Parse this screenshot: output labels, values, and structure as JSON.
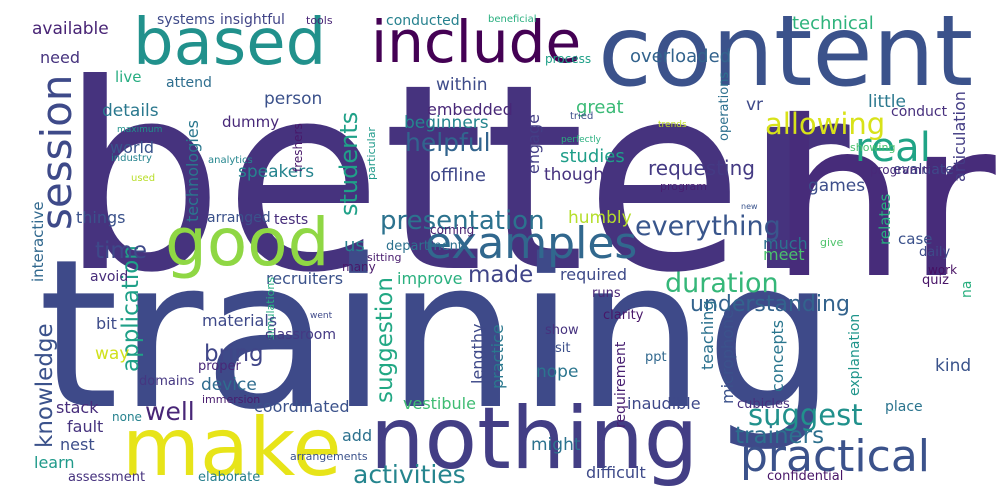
{
  "words": [
    {
      "text": "better",
      "color": "#46337e"
    },
    {
      "text": "training",
      "color": "#3e4a89"
    },
    {
      "text": "hr",
      "color": "#472c7a"
    },
    {
      "text": "content",
      "color": "#3b528b"
    },
    {
      "text": "nothing",
      "color": "#433e85"
    },
    {
      "text": "make",
      "color": "#e7e419"
    },
    {
      "text": "based",
      "color": "#21918c"
    },
    {
      "text": "include",
      "color": "#440154"
    },
    {
      "text": "good",
      "color": "#8fd744"
    },
    {
      "text": "examples",
      "color": "#31688e"
    },
    {
      "text": "practical",
      "color": "#3b528b"
    },
    {
      "text": "session",
      "color": "#3e4a89"
    },
    {
      "text": "real",
      "color": "#20a486"
    },
    {
      "text": "presentation",
      "color": "#2c728e"
    },
    {
      "text": "everything",
      "color": "#39568c"
    },
    {
      "text": "duration",
      "color": "#35b779"
    },
    {
      "text": "understanding",
      "color": "#33638d"
    },
    {
      "text": "allowing",
      "color": "#d8e219"
    },
    {
      "text": "suggest",
      "color": "#21918c"
    },
    {
      "text": "activities",
      "color": "#25858e"
    },
    {
      "text": "helpful",
      "color": "#32648e"
    },
    {
      "text": "students",
      "color": "#1fa188"
    },
    {
      "text": "application",
      "color": "#1fa088"
    },
    {
      "text": "trainers",
      "color": "#2d708e"
    },
    {
      "text": "suggestion",
      "color": "#22a884"
    },
    {
      "text": "made",
      "color": "#404588"
    },
    {
      "text": "well",
      "color": "#482677"
    },
    {
      "text": "bring",
      "color": "#404688"
    },
    {
      "text": "time",
      "color": "#3e4989"
    },
    {
      "text": "knowledge",
      "color": "#3b528b"
    },
    {
      "text": "requesting",
      "color": "#443a83"
    },
    {
      "text": "games",
      "color": "#3d4e8a"
    },
    {
      "text": "little",
      "color": "#2a788e"
    },
    {
      "text": "offline",
      "color": "#3f4889"
    },
    {
      "text": "technical",
      "color": "#2eb37c"
    },
    {
      "text": "overloaded",
      "color": "#33638d"
    },
    {
      "text": "available",
      "color": "#482475"
    },
    {
      "text": "details",
      "color": "#2a788e"
    },
    {
      "text": "embedded",
      "color": "#482777"
    },
    {
      "text": "person",
      "color": "#3b518b"
    },
    {
      "text": "vr",
      "color": "#3e4989"
    },
    {
      "text": "within",
      "color": "#3e4c8a"
    },
    {
      "text": "need",
      "color": "#46337e"
    },
    {
      "text": "live",
      "color": "#27ad81"
    },
    {
      "text": "great",
      "color": "#3aba76"
    },
    {
      "text": "beginners",
      "color": "#25858e"
    },
    {
      "text": "engage",
      "color": "#433e85"
    },
    {
      "text": "studies",
      "color": "#1f9e89"
    },
    {
      "text": "speakers",
      "color": "#25848e"
    },
    {
      "text": "world",
      "color": "#3a548c"
    },
    {
      "text": "technologies",
      "color": "#2a778e"
    },
    {
      "text": "dummy",
      "color": "#482979"
    },
    {
      "text": "articulation",
      "color": "#433d84"
    },
    {
      "text": "conduct",
      "color": "#472f7d"
    },
    {
      "text": "evaluate",
      "color": "#3f4889"
    },
    {
      "text": "programm",
      "color": "#482979"
    },
    {
      "text": "program",
      "color": "#481f70"
    },
    {
      "text": "showing",
      "color": "#48c16e"
    },
    {
      "text": "humbly",
      "color": "#b5de2b"
    },
    {
      "text": "though",
      "color": "#46327e"
    },
    {
      "text": "case",
      "color": "#3b518b"
    },
    {
      "text": "relates",
      "color": "#28ae80"
    },
    {
      "text": "much",
      "color": "#2c718e"
    },
    {
      "text": "meet",
      "color": "#4ac16d"
    },
    {
      "text": "us",
      "color": "#27808e"
    },
    {
      "text": "things",
      "color": "#3b528b"
    },
    {
      "text": "interactive",
      "color": "#31688e"
    },
    {
      "text": "arranged",
      "color": "#3b528b"
    },
    {
      "text": "tests",
      "color": "#472d7b"
    },
    {
      "text": "recruiters",
      "color": "#3b528b"
    },
    {
      "text": "improve",
      "color": "#2ab07f"
    },
    {
      "text": "required",
      "color": "#3e4a89"
    },
    {
      "text": "department",
      "color": "#2c718e"
    },
    {
      "text": "coming",
      "color": "#482071"
    },
    {
      "text": "sitting",
      "color": "#481b6d"
    },
    {
      "text": "give",
      "color": "#4ec36b"
    },
    {
      "text": "work",
      "color": "#471063"
    },
    {
      "text": "daily",
      "color": "#3e4a89"
    },
    {
      "text": "quiz",
      "color": "#481467"
    },
    {
      "text": "avoid",
      "color": "#472c7a"
    },
    {
      "text": "many",
      "color": "#48186a"
    },
    {
      "text": "simulations",
      "color": "#27ad81"
    },
    {
      "text": "runs",
      "color": "#482576"
    },
    {
      "text": "na",
      "color": "#29af7f"
    },
    {
      "text": "bit",
      "color": "#3e4c8a"
    },
    {
      "text": "materials",
      "color": "#3e4989"
    },
    {
      "text": "classroom",
      "color": "#443983"
    },
    {
      "text": "way",
      "color": "#d0e11c"
    },
    {
      "text": "device",
      "color": "#2f6c8e"
    },
    {
      "text": "proper",
      "color": "#482878"
    },
    {
      "text": "domains",
      "color": "#453781"
    },
    {
      "text": "lengthy",
      "color": "#3e4989"
    },
    {
      "text": "practice",
      "color": "#2a788e"
    },
    {
      "text": "nope",
      "color": "#2b758e"
    },
    {
      "text": "requirement",
      "color": "#482071"
    },
    {
      "text": "teaching",
      "color": "#2c718e"
    },
    {
      "text": "microphone",
      "color": "#3b528b"
    },
    {
      "text": "concepts",
      "color": "#2a768e"
    },
    {
      "text": "explanation",
      "color": "#1f958b"
    },
    {
      "text": "kind",
      "color": "#3a538b"
    },
    {
      "text": "clarity",
      "color": "#481769"
    },
    {
      "text": "show",
      "color": "#46327e"
    },
    {
      "text": "sit",
      "color": "#3c4f8a"
    },
    {
      "text": "ppt",
      "color": "#31688e"
    },
    {
      "text": "went",
      "color": "#3e4989"
    },
    {
      "text": "stack",
      "color": "#472d7b"
    },
    {
      "text": "coordinated",
      "color": "#3b528b"
    },
    {
      "text": "vestibule",
      "color": "#3fbc73"
    },
    {
      "text": "inaudible",
      "color": "#3e4989"
    },
    {
      "text": "cubicles",
      "color": "#472f7d"
    },
    {
      "text": "place",
      "color": "#2b748e"
    },
    {
      "text": "fault",
      "color": "#46337e"
    },
    {
      "text": "nest",
      "color": "#3d4e8a"
    },
    {
      "text": "learn",
      "color": "#1f9a8a"
    },
    {
      "text": "add",
      "color": "#2c718e"
    },
    {
      "text": "might",
      "color": "#2c728e"
    },
    {
      "text": "difficult",
      "color": "#3e4a89"
    },
    {
      "text": "none",
      "color": "#26828e"
    },
    {
      "text": "immersion",
      "color": "#481b6d"
    },
    {
      "text": "arrangements",
      "color": "#3b528b"
    },
    {
      "text": "assessment",
      "color": "#46327e"
    },
    {
      "text": "elaborate",
      "color": "#277f8e"
    },
    {
      "text": "confidential",
      "color": "#481668"
    },
    {
      "text": "systems",
      "color": "#3e4a89"
    },
    {
      "text": "insightful",
      "color": "#414487"
    },
    {
      "text": "tools",
      "color": "#482475"
    },
    {
      "text": "conducted",
      "color": "#26818e"
    },
    {
      "text": "beneficial",
      "color": "#29af7f"
    },
    {
      "text": "process",
      "color": "#1fa088"
    },
    {
      "text": "attend",
      "color": "#2e6e8e"
    },
    {
      "text": "tried",
      "color": "#3c4f8a"
    },
    {
      "text": "perfectly",
      "color": "#2ab07f"
    },
    {
      "text": "trends",
      "color": "#c2df23"
    },
    {
      "text": "maximum",
      "color": "#20928c"
    },
    {
      "text": "industry",
      "color": "#25838e"
    },
    {
      "text": "analytics",
      "color": "#24868e"
    },
    {
      "text": "used",
      "color": "#b8de29"
    },
    {
      "text": "freshers",
      "color": "#48186a"
    },
    {
      "text": "particular",
      "color": "#1f9a8a"
    },
    {
      "text": "operations",
      "color": "#2d708e"
    },
    {
      "text": "new",
      "color": "#3a548c"
    }
  ]
}
